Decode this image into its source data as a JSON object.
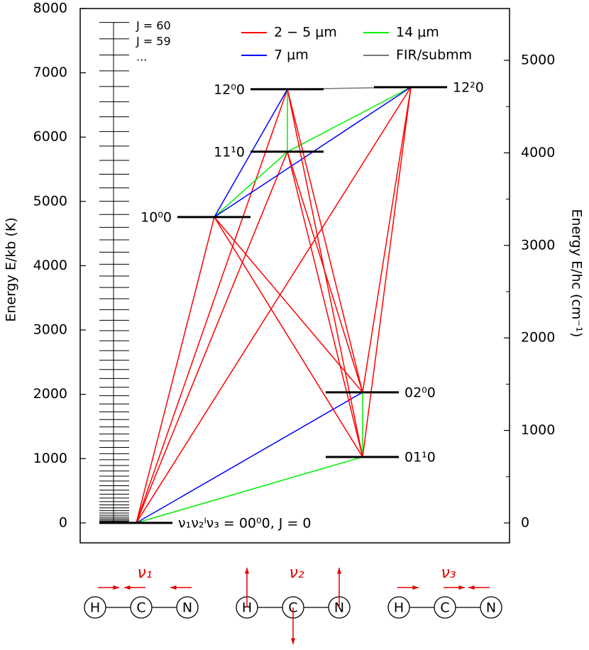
{
  "chart_data": {
    "type": "energy-levels",
    "ylabel": "Energy E/kb (K)",
    "y2label": "Energy E/hc (cm⁻¹)",
    "ylim": [
      -310,
      8000
    ],
    "yticks": [
      0,
      1000,
      2000,
      3000,
      4000,
      5000,
      6000,
      7000,
      8000
    ],
    "y2lim": [
      -215,
      5560
    ],
    "y2ticks": [
      0,
      1000,
      2000,
      3000,
      4000,
      5000
    ],
    "y2minor": [
      500,
      1500,
      2500,
      3500,
      4500
    ],
    "series": [
      {
        "name": "2 − 5 μm",
        "color": "#ff0000"
      },
      {
        "name": "7 μm",
        "color": "#0000ff"
      },
      {
        "name": "14 μm",
        "color": "#00ee00"
      },
      {
        "name": "FIR/submm",
        "color": "#777777"
      }
    ],
    "rotational_levels": [
      0,
      4,
      13,
      26,
      43,
      64,
      89,
      119,
      153,
      191,
      234,
      281,
      332,
      387,
      447,
      510,
      578,
      651,
      727,
      808,
      893,
      982,
      1076,
      1174,
      1276,
      1382,
      1493,
      1608,
      1727,
      1850,
      1978,
      2109,
      2246,
      2386,
      2531,
      2679,
      2832,
      2990,
      3151,
      3317,
      3487,
      3662,
      3840,
      4023,
      4210,
      4402,
      4597,
      4797,
      5002,
      5210,
      5423,
      5639,
      5861,
      6086,
      6316,
      6550,
      6788,
      7030,
      7277,
      7528,
      7783
    ],
    "rotational_labels": [
      "J = 60",
      "J = 59",
      "..."
    ],
    "levels": [
      {
        "label": "ν₁ν₂ˡν₃ = 00⁰0, J = 0",
        "energy": 0
      },
      {
        "label": "01¹0",
        "energy": 1026
      },
      {
        "label": "02⁰0",
        "energy": 2031
      },
      {
        "label": "10⁰0",
        "energy": 4757
      },
      {
        "label": "11¹0",
        "energy": 5773
      },
      {
        "label": "12⁰0",
        "energy": 6744
      },
      {
        "label": "12²0",
        "energy": 6777
      }
    ],
    "transitions": [
      {
        "from": 0,
        "to": 3,
        "band": 0
      },
      {
        "from": 0,
        "to": 4,
        "band": 0
      },
      {
        "from": 0,
        "to": 5,
        "band": 0
      },
      {
        "from": 0,
        "to": 6,
        "band": 0
      },
      {
        "from": 0,
        "to": 1,
        "band": 2
      },
      {
        "from": 0,
        "to": 2,
        "band": 1
      },
      {
        "from": 3,
        "to": 4,
        "band": 2
      },
      {
        "from": 4,
        "to": 6,
        "band": 2
      },
      {
        "from": 3,
        "to": 5,
        "band": 1
      },
      {
        "from": 3,
        "to": 6,
        "band": 1
      },
      {
        "from": 4,
        "to": 5,
        "band": 2
      },
      {
        "from": 1,
        "to": 2,
        "band": 2
      },
      {
        "from": 3,
        "to": 1,
        "band": 0
      },
      {
        "from": 3,
        "to": 2,
        "band": 0
      },
      {
        "from": 5,
        "to": 1,
        "band": 0
      },
      {
        "from": 5,
        "to": 2,
        "band": 0
      },
      {
        "from": 4,
        "to": 1,
        "band": 0
      },
      {
        "from": 4,
        "to": 2,
        "band": 0
      },
      {
        "from": 6,
        "to": 1,
        "band": 0
      },
      {
        "from": 6,
        "to": 2,
        "band": 0
      },
      {
        "from": 5,
        "to": 6,
        "band": 3
      }
    ],
    "modes": [
      {
        "label": "ν₁",
        "atoms": [
          "H",
          "C",
          "N"
        ]
      },
      {
        "label": "ν₂",
        "atoms": [
          "H",
          "C",
          "N"
        ]
      },
      {
        "label": "ν₃",
        "atoms": [
          "H",
          "C",
          "N"
        ]
      }
    ]
  }
}
